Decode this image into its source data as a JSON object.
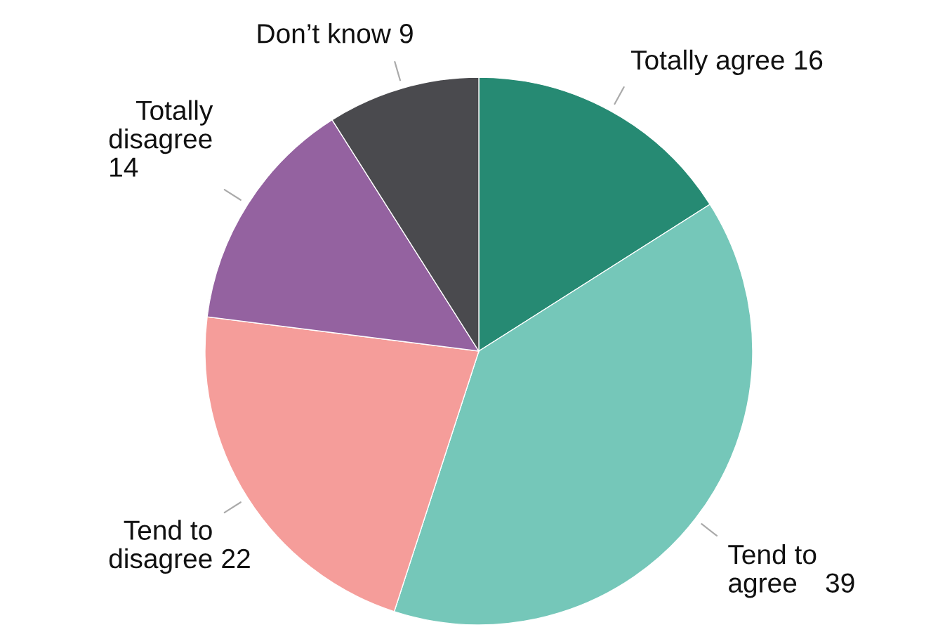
{
  "chart_data": {
    "type": "pie",
    "categories": [
      "Totally agree",
      "Tend to\nagree",
      "Tend to\ndisagree",
      "Totally\ndisagree\n",
      "Don’t know"
    ],
    "values": [
      16,
      39,
      22,
      14,
      9
    ],
    "colors": [
      "#268a73",
      "#75c7b9",
      "#f59d9a",
      "#9462a0",
      "#4a4a4e"
    ],
    "data_labels": true,
    "legend": false
  }
}
